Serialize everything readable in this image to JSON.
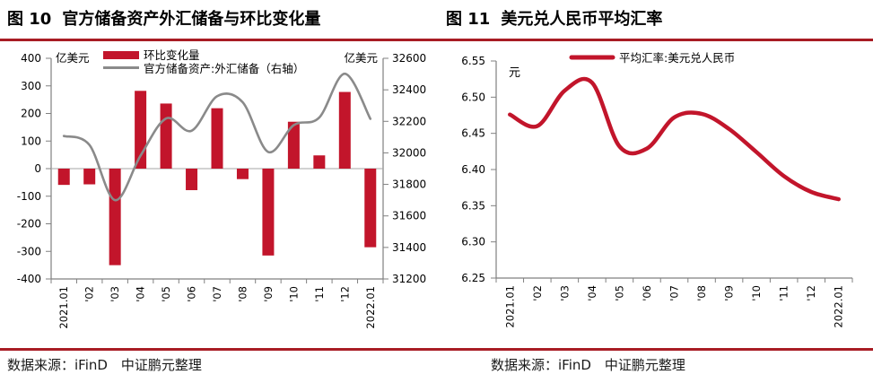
{
  "header": {
    "fig10_label": "图 10",
    "fig10_title": "官方储备资产外汇储备与环比变化量",
    "fig11_label": "图 11",
    "fig11_title": "美元兑人民币平均汇率"
  },
  "footer": {
    "left": "数据来源：iFinD　中证鹏元整理",
    "right": "数据来源：iFinD　中证鹏元整理"
  },
  "colors": {
    "series_red": "#C2152B",
    "series_gray": "#8A8A8A",
    "rule_red": "#A81C24",
    "axis_line": "#808080",
    "zero_line": "#A6A6A6",
    "label_text": "#000000"
  },
  "chart_data": [
    {
      "id": "fig10",
      "type": "bar",
      "title": "图 10 官方储备资产外汇储备与环比变化量",
      "categories": [
        "2021.01",
        "'02",
        "'03",
        "'04",
        "'05",
        "'06",
        "'07",
        "'08",
        "'09",
        "'10",
        "'11",
        "'12",
        "2022.01"
      ],
      "series": [
        {
          "name": "环比变化量",
          "type": "bar",
          "axis": "left",
          "color": "#C2152B",
          "values": [
            -59,
            -57,
            -350,
            282,
            236,
            -78,
            219,
            -38,
            -315,
            170,
            48,
            278,
            -285
          ]
        },
        {
          "name": "官方储备资产:外汇储备（右轴）",
          "type": "line",
          "axis": "right",
          "color": "#8A8A8A",
          "values": [
            32107,
            32050,
            31700,
            31982,
            32218,
            32140,
            32359,
            32321,
            32006,
            32176,
            32224,
            32502,
            32216
          ]
        }
      ],
      "left_axis": {
        "label": "亿美元",
        "min": -400,
        "max": 400,
        "step": 100
      },
      "right_axis": {
        "label": "亿美元",
        "min": 31200,
        "max": 32600,
        "step": 200
      },
      "legend_position": "top",
      "grid": "zero-line-only"
    },
    {
      "id": "fig11",
      "type": "line",
      "title": "图 11 美元兑人民币平均汇率",
      "categories": [
        "2021.01",
        "'02",
        "'03",
        "'04",
        "'05",
        "'06",
        "'07",
        "'08",
        "'09",
        "'10",
        "'11",
        "'12",
        "2022.01"
      ],
      "series": [
        {
          "name": "平均汇率:美元兑人民币",
          "type": "line",
          "axis": "left",
          "color": "#C2152B",
          "values": [
            6.476,
            6.46,
            6.509,
            6.52,
            6.432,
            6.429,
            6.472,
            6.477,
            6.456,
            6.424,
            6.391,
            6.369,
            6.359
          ]
        }
      ],
      "left_axis": {
        "label": "元",
        "min": 6.25,
        "max": 6.55,
        "step": 0.05,
        "decimals": 2
      },
      "legend_position": "top",
      "grid": "off"
    }
  ]
}
